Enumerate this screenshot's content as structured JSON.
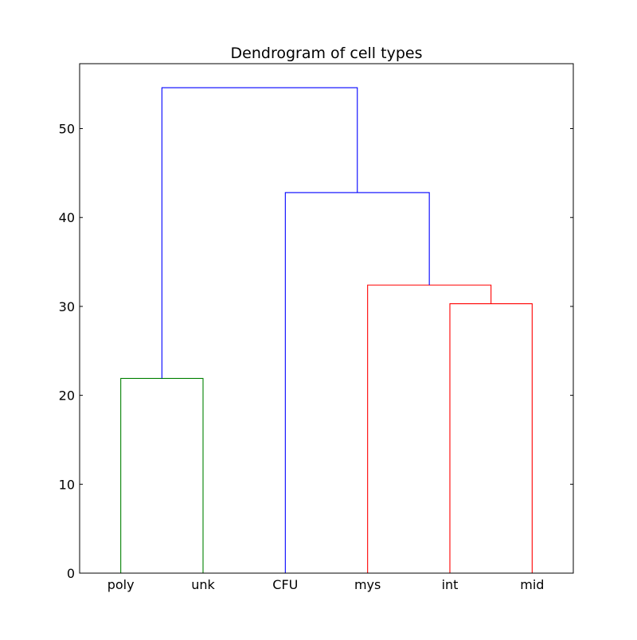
{
  "chart_data": {
    "type": "dendrogram",
    "title": "Dendrogram of cell types",
    "xlabel": "",
    "ylabel": "",
    "leaves": [
      "poly",
      "unk",
      "CFU",
      "mys",
      "int",
      "mid"
    ],
    "ylim": [
      0,
      57.3
    ],
    "yticks": [
      0,
      10,
      20,
      30,
      40,
      50
    ],
    "links": [
      {
        "id": "poly-unk",
        "left": "poly",
        "right": "unk",
        "height": 21.9,
        "color": "#008000"
      },
      {
        "id": "int-mid",
        "left": "int",
        "right": "mid",
        "height": 30.3,
        "color": "#ff0000"
      },
      {
        "id": "mys-intmid",
        "left": "mys",
        "right": "int-mid",
        "height": 32.4,
        "color": "#ff0000"
      },
      {
        "id": "CFU-mysintmid",
        "left": "CFU",
        "right": "mys-intmid",
        "height": 42.8,
        "color": "#0000ff"
      },
      {
        "id": "root",
        "left": "poly-unk",
        "right": "CFU-mysintmid",
        "height": 54.6,
        "color": "#0000ff"
      }
    ],
    "grid": false,
    "legend": "none"
  }
}
